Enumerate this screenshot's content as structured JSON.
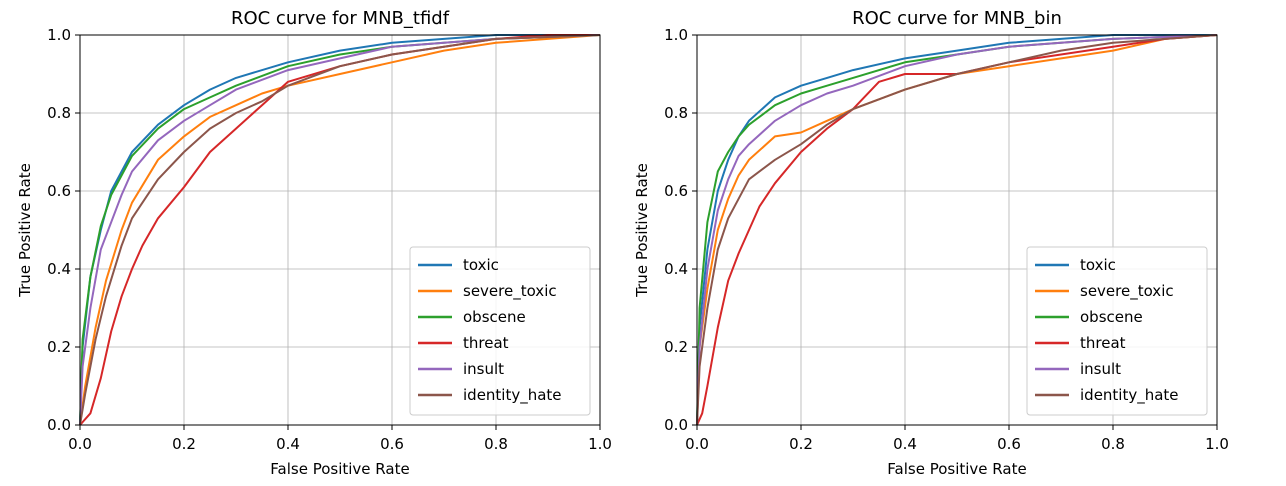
{
  "chart_data": [
    {
      "type": "line",
      "title": "ROC curve for MNB_tfidf",
      "xlabel": "False Positive Rate",
      "ylabel": "True Positive Rate",
      "xlim": [
        0.0,
        1.0
      ],
      "ylim": [
        0.0,
        1.0
      ],
      "xticks": [
        "0.0",
        "0.2",
        "0.4",
        "0.6",
        "0.8",
        "1.0"
      ],
      "yticks": [
        "0.0",
        "0.2",
        "0.4",
        "0.6",
        "0.8",
        "1.0"
      ],
      "grid": true,
      "legend_position": "lower right",
      "series": [
        {
          "name": "toxic",
          "color": "#1f77b4",
          "points": [
            [
              0,
              0
            ],
            [
              0.005,
              0.2
            ],
            [
              0.02,
              0.38
            ],
            [
              0.04,
              0.5
            ],
            [
              0.06,
              0.6
            ],
            [
              0.08,
              0.65
            ],
            [
              0.1,
              0.7
            ],
            [
              0.15,
              0.77
            ],
            [
              0.2,
              0.82
            ],
            [
              0.25,
              0.86
            ],
            [
              0.3,
              0.89
            ],
            [
              0.4,
              0.93
            ],
            [
              0.5,
              0.96
            ],
            [
              0.6,
              0.98
            ],
            [
              0.7,
              0.99
            ],
            [
              0.8,
              1.0
            ],
            [
              1.0,
              1.0
            ]
          ]
        },
        {
          "name": "severe_toxic",
          "color": "#ff7f0e",
          "points": [
            [
              0,
              0
            ],
            [
              0.01,
              0.1
            ],
            [
              0.03,
              0.25
            ],
            [
              0.05,
              0.37
            ],
            [
              0.08,
              0.5
            ],
            [
              0.1,
              0.57
            ],
            [
              0.15,
              0.68
            ],
            [
              0.2,
              0.74
            ],
            [
              0.25,
              0.79
            ],
            [
              0.3,
              0.82
            ],
            [
              0.35,
              0.85
            ],
            [
              0.4,
              0.87
            ],
            [
              0.5,
              0.9
            ],
            [
              0.6,
              0.93
            ],
            [
              0.7,
              0.96
            ],
            [
              0.8,
              0.98
            ],
            [
              0.9,
              0.99
            ],
            [
              1.0,
              1.0
            ]
          ]
        },
        {
          "name": "obscene",
          "color": "#2ca02c",
          "points": [
            [
              0,
              0
            ],
            [
              0.005,
              0.22
            ],
            [
              0.02,
              0.38
            ],
            [
              0.04,
              0.51
            ],
            [
              0.06,
              0.59
            ],
            [
              0.08,
              0.64
            ],
            [
              0.1,
              0.69
            ],
            [
              0.15,
              0.76
            ],
            [
              0.2,
              0.81
            ],
            [
              0.25,
              0.84
            ],
            [
              0.3,
              0.87
            ],
            [
              0.4,
              0.92
            ],
            [
              0.5,
              0.95
            ],
            [
              0.6,
              0.97
            ],
            [
              0.7,
              0.98
            ],
            [
              0.8,
              0.99
            ],
            [
              1.0,
              1.0
            ]
          ]
        },
        {
          "name": "threat",
          "color": "#d62728",
          "points": [
            [
              0,
              0
            ],
            [
              0.02,
              0.03
            ],
            [
              0.04,
              0.12
            ],
            [
              0.06,
              0.24
            ],
            [
              0.08,
              0.33
            ],
            [
              0.1,
              0.4
            ],
            [
              0.12,
              0.46
            ],
            [
              0.15,
              0.53
            ],
            [
              0.2,
              0.61
            ],
            [
              0.25,
              0.7
            ],
            [
              0.3,
              0.76
            ],
            [
              0.35,
              0.82
            ],
            [
              0.4,
              0.88
            ],
            [
              0.5,
              0.92
            ],
            [
              0.6,
              0.95
            ],
            [
              0.7,
              0.97
            ],
            [
              0.8,
              0.99
            ],
            [
              0.9,
              1.0
            ],
            [
              1.0,
              1.0
            ]
          ]
        },
        {
          "name": "insult",
          "color": "#9467bd",
          "points": [
            [
              0,
              0
            ],
            [
              0.005,
              0.15
            ],
            [
              0.02,
              0.3
            ],
            [
              0.04,
              0.45
            ],
            [
              0.06,
              0.52
            ],
            [
              0.08,
              0.59
            ],
            [
              0.1,
              0.65
            ],
            [
              0.15,
              0.73
            ],
            [
              0.2,
              0.78
            ],
            [
              0.25,
              0.82
            ],
            [
              0.3,
              0.86
            ],
            [
              0.4,
              0.91
            ],
            [
              0.5,
              0.94
            ],
            [
              0.6,
              0.97
            ],
            [
              0.7,
              0.98
            ],
            [
              0.8,
              0.99
            ],
            [
              1.0,
              1.0
            ]
          ]
        },
        {
          "name": "identity_hate",
          "color": "#8c564b",
          "points": [
            [
              0,
              0
            ],
            [
              0.01,
              0.08
            ],
            [
              0.03,
              0.22
            ],
            [
              0.05,
              0.33
            ],
            [
              0.08,
              0.46
            ],
            [
              0.1,
              0.53
            ],
            [
              0.15,
              0.63
            ],
            [
              0.2,
              0.7
            ],
            [
              0.25,
              0.76
            ],
            [
              0.3,
              0.8
            ],
            [
              0.35,
              0.83
            ],
            [
              0.4,
              0.87
            ],
            [
              0.5,
              0.92
            ],
            [
              0.6,
              0.95
            ],
            [
              0.7,
              0.97
            ],
            [
              0.8,
              0.99
            ],
            [
              1.0,
              1.0
            ]
          ]
        }
      ]
    },
    {
      "type": "line",
      "title": "ROC curve for MNB_bin",
      "xlabel": "False Positive Rate",
      "ylabel": "True Positive Rate",
      "xlim": [
        0.0,
        1.0
      ],
      "ylim": [
        0.0,
        1.0
      ],
      "xticks": [
        "0.0",
        "0.2",
        "0.4",
        "0.6",
        "0.8",
        "1.0"
      ],
      "yticks": [
        "0.0",
        "0.2",
        "0.4",
        "0.6",
        "0.8",
        "1.0"
      ],
      "grid": true,
      "legend_position": "lower right",
      "series": [
        {
          "name": "toxic",
          "color": "#1f77b4",
          "points": [
            [
              0,
              0
            ],
            [
              0.005,
              0.25
            ],
            [
              0.02,
              0.45
            ],
            [
              0.04,
              0.6
            ],
            [
              0.06,
              0.68
            ],
            [
              0.08,
              0.74
            ],
            [
              0.1,
              0.78
            ],
            [
              0.15,
              0.84
            ],
            [
              0.2,
              0.87
            ],
            [
              0.25,
              0.89
            ],
            [
              0.3,
              0.91
            ],
            [
              0.4,
              0.94
            ],
            [
              0.5,
              0.96
            ],
            [
              0.6,
              0.98
            ],
            [
              0.7,
              0.99
            ],
            [
              0.8,
              1.0
            ],
            [
              1.0,
              1.0
            ]
          ]
        },
        {
          "name": "severe_toxic",
          "color": "#ff7f0e",
          "points": [
            [
              0,
              0
            ],
            [
              0.005,
              0.2
            ],
            [
              0.02,
              0.35
            ],
            [
              0.04,
              0.5
            ],
            [
              0.06,
              0.58
            ],
            [
              0.08,
              0.64
            ],
            [
              0.1,
              0.68
            ],
            [
              0.15,
              0.74
            ],
            [
              0.2,
              0.75
            ],
            [
              0.25,
              0.78
            ],
            [
              0.3,
              0.81
            ],
            [
              0.4,
              0.86
            ],
            [
              0.5,
              0.9
            ],
            [
              0.6,
              0.92
            ],
            [
              0.7,
              0.94
            ],
            [
              0.8,
              0.96
            ],
            [
              0.9,
              0.99
            ],
            [
              1.0,
              1.0
            ]
          ]
        },
        {
          "name": "obscene",
          "color": "#2ca02c",
          "points": [
            [
              0,
              0
            ],
            [
              0.005,
              0.3
            ],
            [
              0.02,
              0.52
            ],
            [
              0.04,
              0.65
            ],
            [
              0.06,
              0.7
            ],
            [
              0.08,
              0.74
            ],
            [
              0.1,
              0.77
            ],
            [
              0.15,
              0.82
            ],
            [
              0.2,
              0.85
            ],
            [
              0.25,
              0.87
            ],
            [
              0.3,
              0.89
            ],
            [
              0.4,
              0.93
            ],
            [
              0.5,
              0.95
            ],
            [
              0.6,
              0.97
            ],
            [
              0.7,
              0.98
            ],
            [
              0.8,
              0.99
            ],
            [
              1.0,
              1.0
            ]
          ]
        },
        {
          "name": "threat",
          "color": "#d62728",
          "points": [
            [
              0,
              0
            ],
            [
              0.01,
              0.03
            ],
            [
              0.02,
              0.1
            ],
            [
              0.04,
              0.25
            ],
            [
              0.06,
              0.37
            ],
            [
              0.08,
              0.44
            ],
            [
              0.1,
              0.5
            ],
            [
              0.12,
              0.56
            ],
            [
              0.15,
              0.62
            ],
            [
              0.2,
              0.7
            ],
            [
              0.25,
              0.76
            ],
            [
              0.3,
              0.81
            ],
            [
              0.35,
              0.88
            ],
            [
              0.4,
              0.9
            ],
            [
              0.5,
              0.9
            ],
            [
              0.6,
              0.93
            ],
            [
              0.7,
              0.95
            ],
            [
              0.8,
              0.97
            ],
            [
              0.9,
              0.99
            ],
            [
              1.0,
              1.0
            ]
          ]
        },
        {
          "name": "insult",
          "color": "#9467bd",
          "points": [
            [
              0,
              0
            ],
            [
              0.005,
              0.2
            ],
            [
              0.02,
              0.4
            ],
            [
              0.04,
              0.55
            ],
            [
              0.06,
              0.63
            ],
            [
              0.08,
              0.69
            ],
            [
              0.1,
              0.72
            ],
            [
              0.15,
              0.78
            ],
            [
              0.2,
              0.82
            ],
            [
              0.25,
              0.85
            ],
            [
              0.3,
              0.87
            ],
            [
              0.4,
              0.92
            ],
            [
              0.5,
              0.95
            ],
            [
              0.6,
              0.97
            ],
            [
              0.7,
              0.98
            ],
            [
              0.8,
              0.99
            ],
            [
              1.0,
              1.0
            ]
          ]
        },
        {
          "name": "identity_hate",
          "color": "#8c564b",
          "points": [
            [
              0,
              0
            ],
            [
              0.005,
              0.15
            ],
            [
              0.02,
              0.3
            ],
            [
              0.04,
              0.45
            ],
            [
              0.06,
              0.53
            ],
            [
              0.08,
              0.58
            ],
            [
              0.1,
              0.63
            ],
            [
              0.15,
              0.68
            ],
            [
              0.2,
              0.72
            ],
            [
              0.25,
              0.77
            ],
            [
              0.3,
              0.81
            ],
            [
              0.4,
              0.86
            ],
            [
              0.5,
              0.9
            ],
            [
              0.6,
              0.93
            ],
            [
              0.7,
              0.96
            ],
            [
              0.8,
              0.98
            ],
            [
              0.9,
              0.99
            ],
            [
              1.0,
              1.0
            ]
          ]
        }
      ]
    }
  ]
}
